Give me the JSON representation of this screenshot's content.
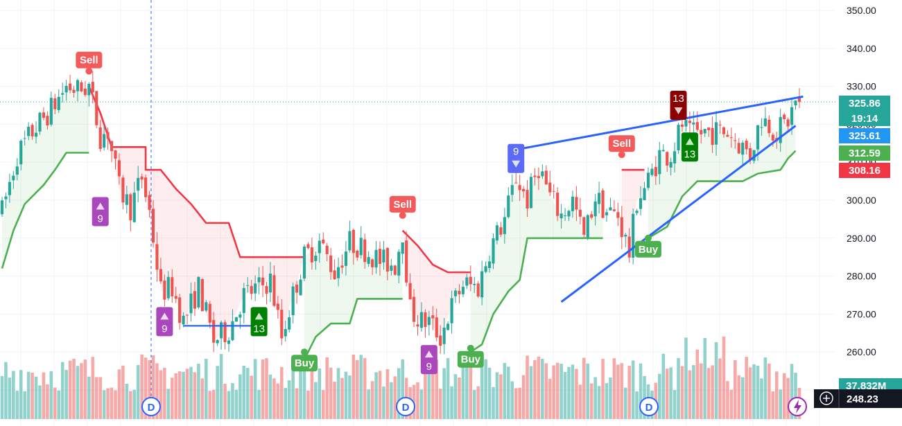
{
  "chart_data": {
    "type": "candlestick",
    "y_axis": {
      "ticks": [
        "350.00",
        "340.00",
        "330.00",
        "320.00",
        "310.00",
        "300.00",
        "290.00",
        "280.00",
        "270.00",
        "260.00",
        "250.00"
      ],
      "range": [
        246,
        353
      ]
    },
    "price_tags": [
      {
        "value": 325.86,
        "label": "325.86",
        "color": "#26a69a"
      },
      {
        "label": "19:14",
        "color": "#26a69a"
      },
      {
        "value": 325.61,
        "label": "325.61",
        "color": "#2196f3"
      },
      {
        "value": 312.59,
        "label": "312.59",
        "color": "#4caf50"
      },
      {
        "value": 308.16,
        "label": "308.16",
        "color": "#f23645"
      }
    ],
    "volume_tag": {
      "label": "37.832M",
      "color": "#26a69a"
    },
    "crosshair_price": "248.23",
    "last_price": 325.86,
    "colors": {
      "up": "#26a69a",
      "down": "#ef5350",
      "supertrend_up": "#4caf50",
      "supertrend_down": "#f23645",
      "trendline": "#2962ff",
      "td_setup": "#9c27b0",
      "td_countdown": "#008000"
    },
    "signals": [
      {
        "label": "Sell",
        "bar": 23,
        "price": 334
      },
      {
        "label": "Sell",
        "bar": 106,
        "price": 296
      },
      {
        "label": "Sell",
        "bar": 164,
        "price": 312
      },
      {
        "label": "Buy",
        "bar": 80,
        "price": 260
      },
      {
        "label": "Buy",
        "bar": 124,
        "price": 261
      },
      {
        "label": "Buy",
        "bar": 171,
        "price": 290
      }
    ],
    "td_marks": [
      {
        "text": "9",
        "arrow": "up",
        "bar": 26,
        "price": 297,
        "kind": "setup"
      },
      {
        "text": "9",
        "arrow": "up",
        "bar": 43,
        "price": 268,
        "kind": "setup"
      },
      {
        "text": "13",
        "arrow": "up",
        "bar": 68,
        "price": 268,
        "kind": "countdown"
      },
      {
        "text": "9",
        "arrow": "up",
        "bar": 113,
        "price": 258,
        "kind": "setup"
      },
      {
        "text": "9",
        "arrow": "down",
        "bar": 136,
        "price": 311,
        "kind": "setup-down"
      },
      {
        "text": "13",
        "arrow": "down",
        "bar": 179,
        "price": 325,
        "kind": "countdown-down"
      },
      {
        "text": "13",
        "arrow": "up",
        "bar": 182,
        "price": 314,
        "kind": "countdown"
      }
    ],
    "dividend_marks": [
      "D",
      "D",
      "D"
    ],
    "trendlines": [
      {
        "from": {
          "bar": 137,
          "price": 313.5
        },
        "to": {
          "bar": 212,
          "price": 327.3
        }
      },
      {
        "from": {
          "bar": 148,
          "price": 273.2
        },
        "to": {
          "bar": 210,
          "price": 319.6
        }
      }
    ],
    "support_lines": [
      {
        "from_bar": 48,
        "to_bar": 67,
        "price": 266.9
      }
    ],
    "dotted_price_line": 325.86
  }
}
